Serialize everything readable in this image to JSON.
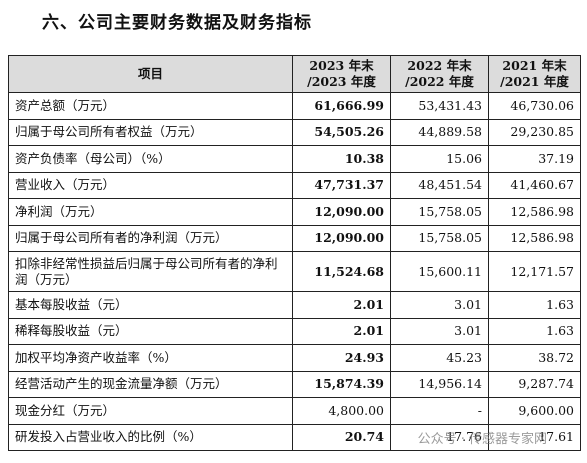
{
  "header": {
    "title": "六、公司主要财务数据及财务指标"
  },
  "table": {
    "columns": [
      "项目",
      [
        "2023 年末",
        "/2023 年度"
      ],
      [
        "2022 年末",
        "/2022 年度"
      ],
      [
        "2021 年末",
        "/2021 年度"
      ]
    ],
    "rows": [
      [
        "资产总额（万元）",
        "61,666.99",
        "53,431.43",
        "46,730.06"
      ],
      [
        "归属于母公司所有者权益（万元）",
        "54,505.26",
        "44,889.58",
        "29,230.85"
      ],
      [
        "资产负债率（母公司）（%）",
        "10.38",
        "15.06",
        "37.19"
      ],
      [
        "营业收入（万元）",
        "47,731.37",
        "48,451.54",
        "41,460.67"
      ],
      [
        "净利润（万元）",
        "12,090.00",
        "15,758.05",
        "12,586.98"
      ],
      [
        "归属于母公司所有者的净利润（万元）",
        "12,090.00",
        "15,758.05",
        "12,586.98"
      ],
      [
        "扣除非经常性损益后归属于母公司所有者的净利润（万元）",
        "11,524.68",
        "15,600.11",
        "12,171.57"
      ],
      [
        "基本每股收益（元）",
        "2.01",
        "3.01",
        "1.63"
      ],
      [
        "稀释每股收益（元）",
        "2.01",
        "3.01",
        "1.63"
      ],
      [
        "加权平均净资产收益率（%）",
        "24.93",
        "45.23",
        "38.72"
      ],
      [
        "经营活动产生的现金流量净额（万元）",
        "15,874.39",
        "14,956.14",
        "9,287.74"
      ],
      [
        "现金分红（万元）",
        "4,800.00",
        "-",
        "9,600.00"
      ],
      [
        "研发投入占营业收入的比例（%）",
        "20.74",
        "17.76",
        "17.61"
      ]
    ]
  },
  "watermark": "公众号 · 传感器专家网"
}
